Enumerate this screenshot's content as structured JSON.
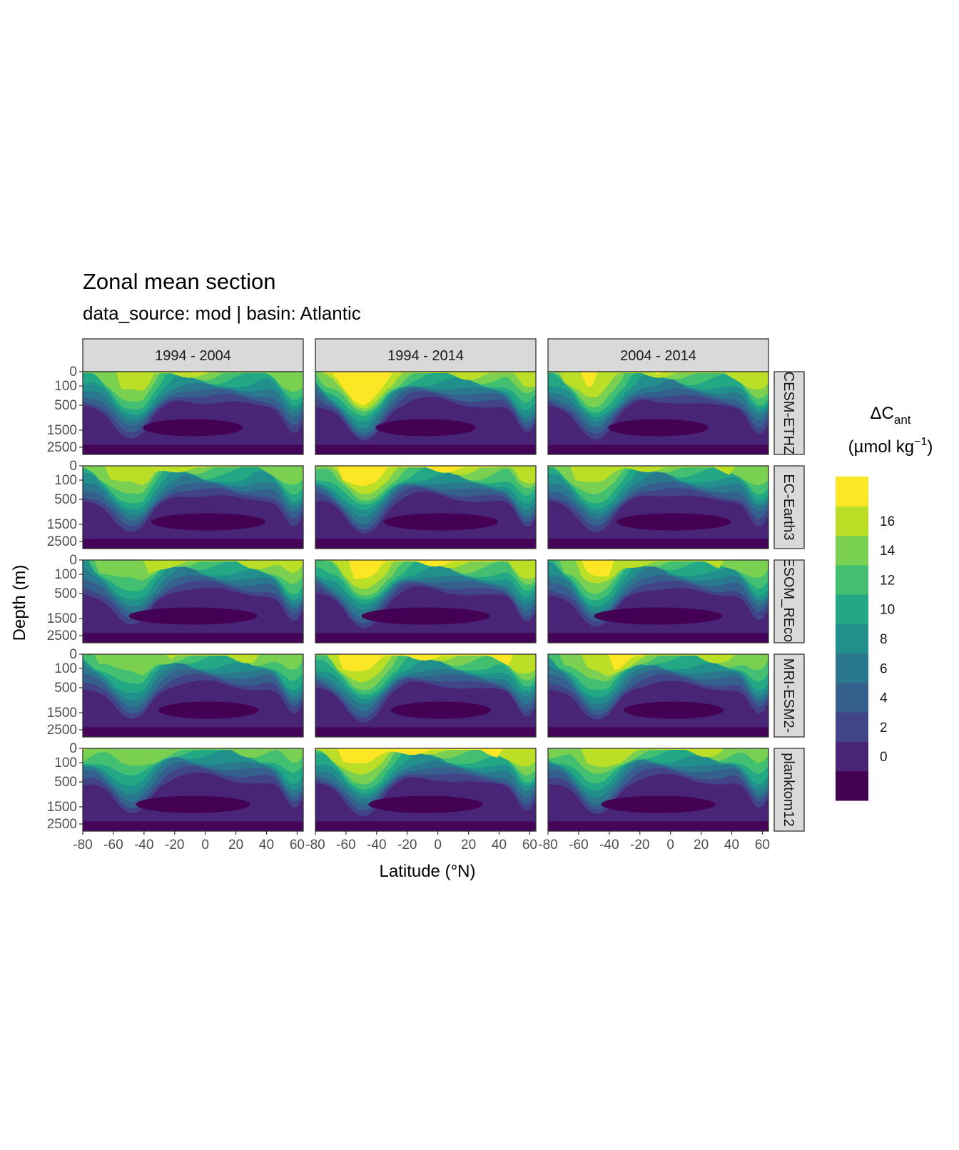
{
  "chart_data": {
    "type": "heatmap",
    "subtype": "filled contour faceted grid",
    "title": "Zonal mean section",
    "subtitle": "data_source:  mod | basin: Atlantic",
    "xlabel": "Latitude (°N)",
    "ylabel": "Depth (m)",
    "x_ticks": [
      "-80",
      "-60",
      "-40",
      "-20",
      "0",
      "20",
      "40",
      "60"
    ],
    "x_tick_values": [
      -80,
      -60,
      -40,
      -20,
      0,
      20,
      40,
      60
    ],
    "xlim": [
      -80,
      64
    ],
    "y_ticks": [
      "0",
      "100",
      "500",
      "1500",
      "2500"
    ],
    "y_tick_values": [
      0,
      100,
      500,
      1500,
      2500
    ],
    "y_reversed": true,
    "column_facets": [
      "1994 - 2004",
      "1994 - 2014",
      "2004 - 2014"
    ],
    "row_facets": [
      "CESM-ETHZ",
      "EC-Earth3",
      "FESOM_REcoM",
      "MRI-ESM2-",
      "planktom12"
    ],
    "legend": {
      "title": "ΔC",
      "title_subscript": "ant",
      "units": "(µmol kg",
      "units_superscript": "−1",
      "units_close": ")",
      "placement": "right",
      "breaks": [
        "0",
        "2",
        "4",
        "6",
        "8",
        "10",
        "12",
        "14",
        "16"
      ],
      "break_values": [
        0,
        2,
        4,
        6,
        8,
        10,
        12,
        14,
        16
      ],
      "colors": [
        "#440154",
        "#482576",
        "#414487",
        "#35608D",
        "#2A788E",
        "#21908C",
        "#22A884",
        "#43BF71",
        "#7AD151",
        "#BBDF27",
        "#FDE725"
      ]
    },
    "panels_surface_levels": [
      [
        [
          8,
          8,
          8,
          9,
          9,
          10,
          9,
          9,
          9,
          10,
          10,
          9,
          8,
          8,
          8,
          8,
          8,
          8,
          8
        ],
        [
          7,
          11,
          11,
          12,
          12,
          11,
          10,
          10,
          9,
          9,
          9,
          9,
          9,
          9,
          9,
          9,
          9,
          9,
          9
        ],
        [
          8,
          9,
          9,
          10,
          10,
          9,
          9,
          9,
          9,
          10,
          9,
          9,
          9,
          9,
          9,
          9,
          9,
          9,
          9
        ]
      ],
      [
        [
          8,
          8,
          9,
          9,
          9,
          10,
          9,
          9,
          9,
          10,
          10,
          9,
          9,
          9,
          8,
          8,
          8,
          8,
          8
        ],
        [
          8,
          9,
          10,
          10,
          10,
          10,
          10,
          10,
          10,
          10,
          10,
          10,
          10,
          10,
          10,
          10,
          9,
          9,
          9
        ],
        [
          8,
          8,
          9,
          9,
          9,
          9,
          9,
          9,
          9,
          9,
          9,
          9,
          9,
          9,
          9,
          9,
          8,
          8,
          8
        ]
      ],
      [
        [
          6,
          8,
          8,
          8,
          8,
          9,
          9,
          9,
          9,
          9,
          9,
          9,
          9,
          9,
          9,
          9,
          9,
          9,
          9
        ],
        [
          7,
          9,
          9,
          10,
          10,
          10,
          10,
          10,
          10,
          10,
          10,
          10,
          10,
          10,
          10,
          10,
          9,
          9,
          9
        ],
        [
          7,
          8,
          8,
          10,
          10,
          10,
          9,
          9,
          9,
          9,
          9,
          9,
          9,
          9,
          9,
          8,
          8,
          8,
          8
        ]
      ],
      [
        [
          7,
          8,
          8,
          8,
          8,
          9,
          8,
          9,
          9,
          9,
          9,
          9,
          9,
          9,
          9,
          8,
          8,
          8,
          8
        ],
        [
          8,
          9,
          10,
          10,
          10,
          10,
          10,
          10,
          10,
          10,
          10,
          10,
          10,
          10,
          10,
          10,
          10,
          9,
          9
        ],
        [
          7,
          8,
          8,
          9,
          9,
          10,
          10,
          10,
          10,
          9,
          9,
          9,
          9,
          9,
          9,
          9,
          8,
          8,
          8
        ]
      ],
      [
        [
          9,
          8,
          8,
          8,
          8,
          8,
          8,
          8,
          8,
          8,
          8,
          8,
          8,
          8,
          8,
          8,
          8,
          8,
          8
        ],
        [
          9,
          9,
          10,
          10,
          10,
          10,
          10,
          10,
          10,
          10,
          10,
          10,
          10,
          10,
          10,
          10,
          9,
          9,
          9
        ],
        [
          8,
          8,
          8,
          9,
          9,
          9,
          9,
          9,
          9,
          9,
          9,
          9,
          9,
          9,
          9,
          8,
          8,
          8,
          8
        ]
      ]
    ],
    "panels_surface_levels_note": "level index into colors along latitude -80..64 per panel [row][col]"
  }
}
